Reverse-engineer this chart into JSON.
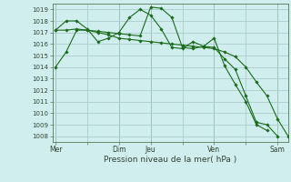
{
  "bg_color": "#d0eeee",
  "grid_color": "#aacccc",
  "line_color": "#1a6b1a",
  "marker_color": "#1a6b1a",
  "xlabel": "Pression niveau de la mer( hPa )",
  "xlabel_fontsize": 6.5,
  "ytick_fontsize": 5.0,
  "xtick_fontsize": 5.5,
  "yticks": [
    1008,
    1009,
    1010,
    1011,
    1012,
    1013,
    1014,
    1015,
    1016,
    1017,
    1018,
    1019
  ],
  "ylim": [
    1007.5,
    1019.5
  ],
  "xtick_labels": [
    "Mer",
    "",
    "Dim",
    "Jeu",
    "",
    "Ven",
    "",
    "Sam"
  ],
  "xtick_positions": [
    0,
    3,
    6,
    9,
    12,
    15,
    18,
    21
  ],
  "vlines": [
    0,
    6,
    9,
    15,
    21
  ],
  "series": [
    [
      1014.0,
      1015.3,
      1017.2,
      1017.2,
      1017.1,
      1017.0,
      1016.9,
      1016.8,
      1016.7,
      1019.2,
      1019.1,
      1018.3,
      1015.7,
      1015.6,
      1015.8,
      1016.5,
      1014.1,
      1012.5,
      1011.0,
      1009.0,
      1008.5
    ],
    [
      1017.2,
      1017.2,
      1017.3,
      1017.2,
      1017.0,
      1016.8,
      1016.5,
      1016.4,
      1016.3,
      1016.2,
      1016.1,
      1016.0,
      1015.9,
      1015.8,
      1015.7,
      1015.6,
      1015.3,
      1014.9,
      1014.0,
      1012.7,
      1011.5,
      1009.5,
      1008.0
    ],
    [
      1017.2,
      1018.0,
      1018.0,
      1017.3,
      1016.2,
      1016.5,
      1017.0,
      1018.3,
      1019.0,
      1018.5,
      1017.3,
      1015.7,
      1015.6,
      1016.2,
      1015.8,
      1015.7,
      1014.7,
      1013.8,
      1011.5,
      1009.2,
      1009.0,
      1008.0
    ]
  ],
  "series_x": [
    [
      0,
      1,
      2,
      3,
      4,
      5,
      6,
      7,
      8,
      9,
      10,
      11,
      12,
      13,
      14,
      15,
      16,
      17,
      18,
      19,
      20
    ],
    [
      0,
      1,
      2,
      3,
      4,
      5,
      6,
      7,
      8,
      9,
      10,
      11,
      12,
      13,
      14,
      15,
      16,
      17,
      18,
      19,
      20,
      21,
      22
    ],
    [
      0,
      1,
      2,
      3,
      4,
      5,
      6,
      7,
      8,
      9,
      10,
      11,
      12,
      13,
      14,
      15,
      16,
      17,
      18,
      19,
      20,
      21
    ]
  ],
  "xlim": [
    -0.3,
    22.0
  ]
}
